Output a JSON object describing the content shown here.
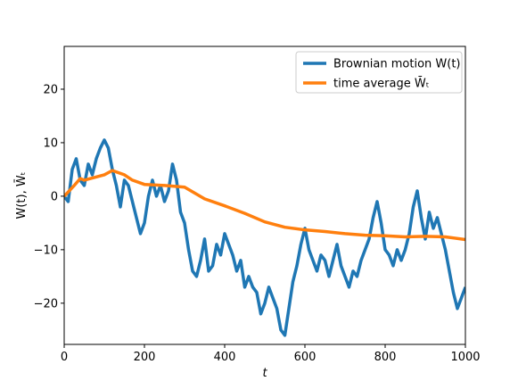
{
  "chart_data": {
    "type": "line",
    "xlabel": "t",
    "ylabel": "W(t), W̄ₜ",
    "xlim": [
      0,
      1000
    ],
    "xticks": [
      0,
      200,
      400,
      600,
      800,
      1000
    ],
    "ylim": [
      -27.7,
      28
    ],
    "yticks": [
      {
        "value": -20,
        "label": "−20"
      },
      {
        "value": -10,
        "label": "−10"
      },
      0,
      10,
      20
    ],
    "legend": "upper right",
    "series": [
      {
        "name": "Brownian motion W(t)",
        "color": "#1f77b4",
        "x": [
          0,
          10,
          20,
          30,
          40,
          50,
          60,
          70,
          80,
          90,
          100,
          110,
          120,
          130,
          140,
          150,
          160,
          170,
          180,
          190,
          200,
          210,
          220,
          230,
          240,
          250,
          260,
          270,
          280,
          290,
          300,
          310,
          320,
          330,
          340,
          350,
          360,
          370,
          380,
          390,
          400,
          410,
          420,
          430,
          440,
          450,
          460,
          470,
          480,
          490,
          500,
          510,
          520,
          530,
          540,
          550,
          560,
          570,
          580,
          590,
          600,
          610,
          620,
          630,
          640,
          650,
          660,
          670,
          680,
          690,
          700,
          710,
          720,
          730,
          740,
          750,
          760,
          770,
          780,
          790,
          800,
          810,
          820,
          830,
          840,
          850,
          860,
          870,
          880,
          890,
          900,
          910,
          920,
          930,
          940,
          950,
          960,
          970,
          980,
          990,
          1000
        ],
        "values": [
          0,
          -1,
          5,
          7,
          3,
          2,
          6,
          4,
          7,
          9,
          10.5,
          9,
          5,
          2,
          -2,
          3,
          2,
          -1,
          -4,
          -7,
          -5,
          0,
          3,
          0,
          2,
          -1,
          1,
          6,
          3,
          -3,
          -5,
          -10,
          -14,
          -15,
          -12,
          -8,
          -14,
          -13,
          -9,
          -11,
          -7,
          -9,
          -11,
          -14,
          -12,
          -17,
          -15,
          -17,
          -18,
          -22,
          -20,
          -17,
          -19,
          -21,
          -25,
          -26,
          -21,
          -16,
          -13,
          -9,
          -6,
          -10,
          -12,
          -14,
          -11,
          -12,
          -15,
          -12,
          -9,
          -13,
          -15,
          -17,
          -14,
          -15,
          -12,
          -10,
          -8,
          -4,
          -1,
          -5,
          -10,
          -11,
          -13,
          -10,
          -12,
          -10,
          -7,
          -2,
          1,
          -4,
          -8,
          -3,
          -6,
          -4,
          -7,
          -10,
          -14,
          -18,
          -21,
          -19,
          -17
        ]
      },
      {
        "name": "time average W̄ₜ",
        "color": "#ff7f0e",
        "x": [
          0,
          25,
          40,
          50,
          100,
          120,
          150,
          170,
          200,
          250,
          300,
          350,
          400,
          450,
          500,
          550,
          600,
          650,
          700,
          750,
          800,
          850,
          900,
          950,
          1000
        ],
        "values": [
          0,
          2,
          3.3,
          3,
          4,
          4.8,
          4,
          3,
          2.2,
          2,
          1.7,
          -0.5,
          -1.8,
          -3.2,
          -4.8,
          -5.8,
          -6.3,
          -6.6,
          -7,
          -7.3,
          -7.4,
          -7.6,
          -7.5,
          -7.6,
          -8.1
        ]
      }
    ]
  }
}
